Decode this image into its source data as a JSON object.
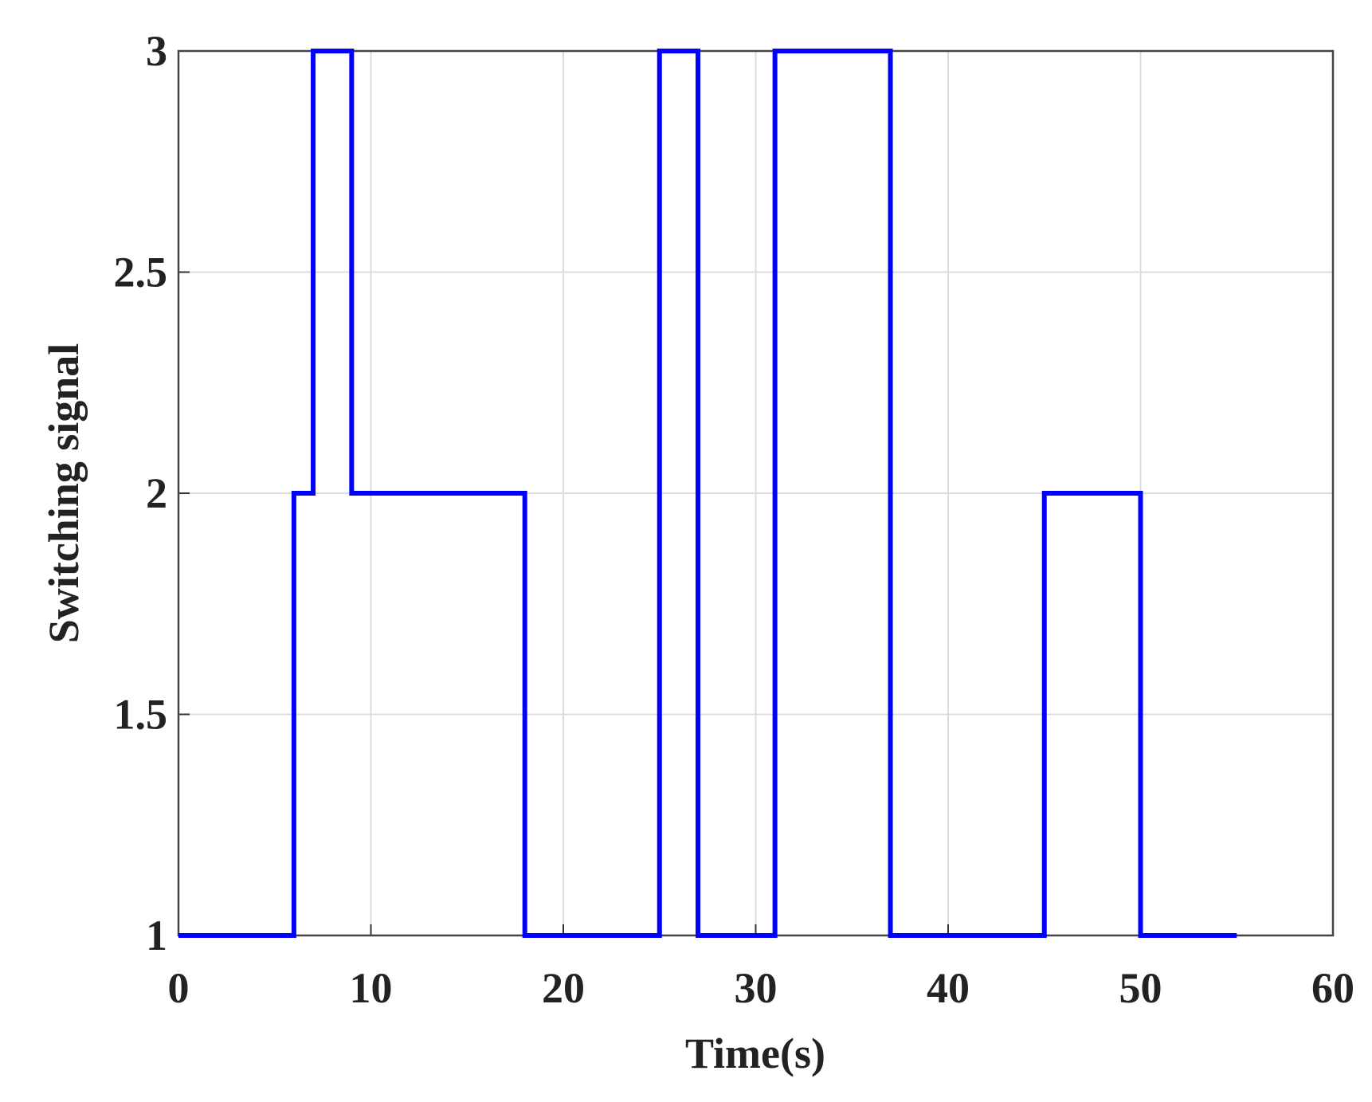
{
  "chart_data": {
    "type": "line",
    "xlabel": "Time(s)",
    "ylabel": "Switching signal",
    "x": [
      0,
      6,
      6,
      7,
      7,
      9,
      9,
      18,
      18,
      25,
      25,
      27,
      27,
      31,
      31,
      37,
      37,
      45,
      45,
      50,
      50,
      55
    ],
    "series": [
      {
        "color": "#0000ff",
        "values": [
          1,
          1,
          2,
          2,
          3,
          3,
          2,
          2,
          1,
          1,
          3,
          3,
          1,
          1,
          3,
          3,
          1,
          1,
          2,
          2,
          1,
          1
        ]
      }
    ],
    "xlim": [
      0,
      60
    ],
    "xticks": [
      0,
      10,
      20,
      30,
      40,
      50,
      60
    ],
    "ylim": [
      1,
      3
    ],
    "yticks": [
      1,
      1.5,
      2,
      2.5,
      3
    ],
    "grid": true
  }
}
